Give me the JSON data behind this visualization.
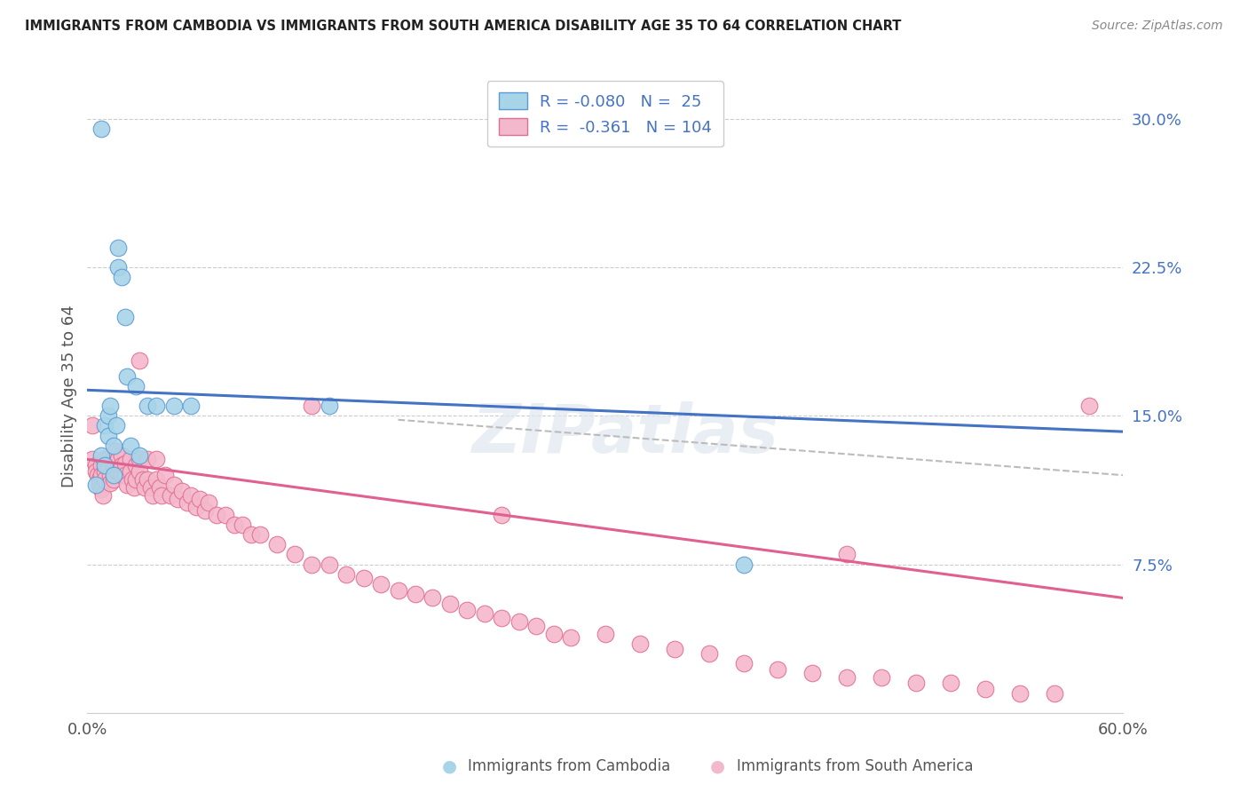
{
  "title": "IMMIGRANTS FROM CAMBODIA VS IMMIGRANTS FROM SOUTH AMERICA DISABILITY AGE 35 TO 64 CORRELATION CHART",
  "source": "Source: ZipAtlas.com",
  "ylabel": "Disability Age 35 to 64",
  "xlim": [
    0.0,
    0.6
  ],
  "ylim": [
    0.0,
    0.32
  ],
  "yticks": [
    0.075,
    0.15,
    0.225,
    0.3
  ],
  "ytick_labels": [
    "7.5%",
    "15.0%",
    "22.5%",
    "30.0%"
  ],
  "color_cambodia_fill": "#a8d4e8",
  "color_cambodia_edge": "#5b9bd5",
  "color_south_fill": "#f4b8cc",
  "color_south_edge": "#e07090",
  "color_blue_line": "#4472c4",
  "color_pink_line": "#e06090",
  "color_dashed": "#bbbbbb",
  "watermark": "ZIPatlas",
  "cambodia_x": [
    0.008,
    0.008,
    0.01,
    0.01,
    0.012,
    0.012,
    0.013,
    0.015,
    0.015,
    0.017,
    0.018,
    0.018,
    0.02,
    0.022,
    0.023,
    0.025,
    0.028,
    0.03,
    0.035,
    0.04,
    0.05,
    0.06,
    0.14,
    0.005,
    0.38
  ],
  "cambodia_y": [
    0.295,
    0.13,
    0.145,
    0.125,
    0.15,
    0.14,
    0.155,
    0.135,
    0.12,
    0.145,
    0.235,
    0.225,
    0.22,
    0.2,
    0.17,
    0.135,
    0.165,
    0.13,
    0.155,
    0.155,
    0.155,
    0.155,
    0.155,
    0.115,
    0.075
  ],
  "south_america_x": [
    0.003,
    0.005,
    0.005,
    0.006,
    0.007,
    0.007,
    0.008,
    0.008,
    0.008,
    0.009,
    0.01,
    0.01,
    0.01,
    0.012,
    0.012,
    0.013,
    0.013,
    0.015,
    0.015,
    0.015,
    0.016,
    0.016,
    0.017,
    0.018,
    0.018,
    0.02,
    0.02,
    0.02,
    0.022,
    0.022,
    0.023,
    0.025,
    0.025,
    0.026,
    0.027,
    0.028,
    0.028,
    0.03,
    0.03,
    0.032,
    0.033,
    0.035,
    0.035,
    0.037,
    0.038,
    0.04,
    0.04,
    0.042,
    0.043,
    0.045,
    0.048,
    0.05,
    0.052,
    0.055,
    0.058,
    0.06,
    0.063,
    0.065,
    0.068,
    0.07,
    0.075,
    0.08,
    0.085,
    0.09,
    0.095,
    0.1,
    0.11,
    0.12,
    0.13,
    0.14,
    0.15,
    0.16,
    0.17,
    0.18,
    0.19,
    0.2,
    0.21,
    0.22,
    0.23,
    0.24,
    0.25,
    0.26,
    0.27,
    0.28,
    0.3,
    0.32,
    0.34,
    0.36,
    0.38,
    0.4,
    0.42,
    0.44,
    0.46,
    0.48,
    0.5,
    0.52,
    0.54,
    0.56,
    0.003,
    0.44,
    0.13,
    0.24,
    0.03,
    0.58
  ],
  "south_america_y": [
    0.128,
    0.125,
    0.122,
    0.12,
    0.118,
    0.115,
    0.125,
    0.12,
    0.113,
    0.11,
    0.128,
    0.122,
    0.118,
    0.128,
    0.124,
    0.12,
    0.116,
    0.128,
    0.124,
    0.118,
    0.132,
    0.126,
    0.122,
    0.128,
    0.122,
    0.13,
    0.125,
    0.12,
    0.126,
    0.12,
    0.115,
    0.128,
    0.122,
    0.118,
    0.114,
    0.125,
    0.118,
    0.128,
    0.122,
    0.118,
    0.114,
    0.128,
    0.118,
    0.114,
    0.11,
    0.128,
    0.118,
    0.114,
    0.11,
    0.12,
    0.11,
    0.115,
    0.108,
    0.112,
    0.106,
    0.11,
    0.104,
    0.108,
    0.102,
    0.106,
    0.1,
    0.1,
    0.095,
    0.095,
    0.09,
    0.09,
    0.085,
    0.08,
    0.075,
    0.075,
    0.07,
    0.068,
    0.065,
    0.062,
    0.06,
    0.058,
    0.055,
    0.052,
    0.05,
    0.048,
    0.046,
    0.044,
    0.04,
    0.038,
    0.04,
    0.035,
    0.032,
    0.03,
    0.025,
    0.022,
    0.02,
    0.018,
    0.018,
    0.015,
    0.015,
    0.012,
    0.01,
    0.01,
    0.145,
    0.08,
    0.155,
    0.1,
    0.178,
    0.155
  ],
  "camb_line_x0": 0.0,
  "camb_line_x1": 0.6,
  "camb_line_y0": 0.163,
  "camb_line_y1": 0.142,
  "sa_line_x0": 0.0,
  "sa_line_x1": 0.6,
  "sa_line_y0": 0.128,
  "sa_line_y1": 0.058,
  "dash_line_x0": 0.18,
  "dash_line_x1": 0.6,
  "dash_line_y0": 0.148,
  "dash_line_y1": 0.12
}
